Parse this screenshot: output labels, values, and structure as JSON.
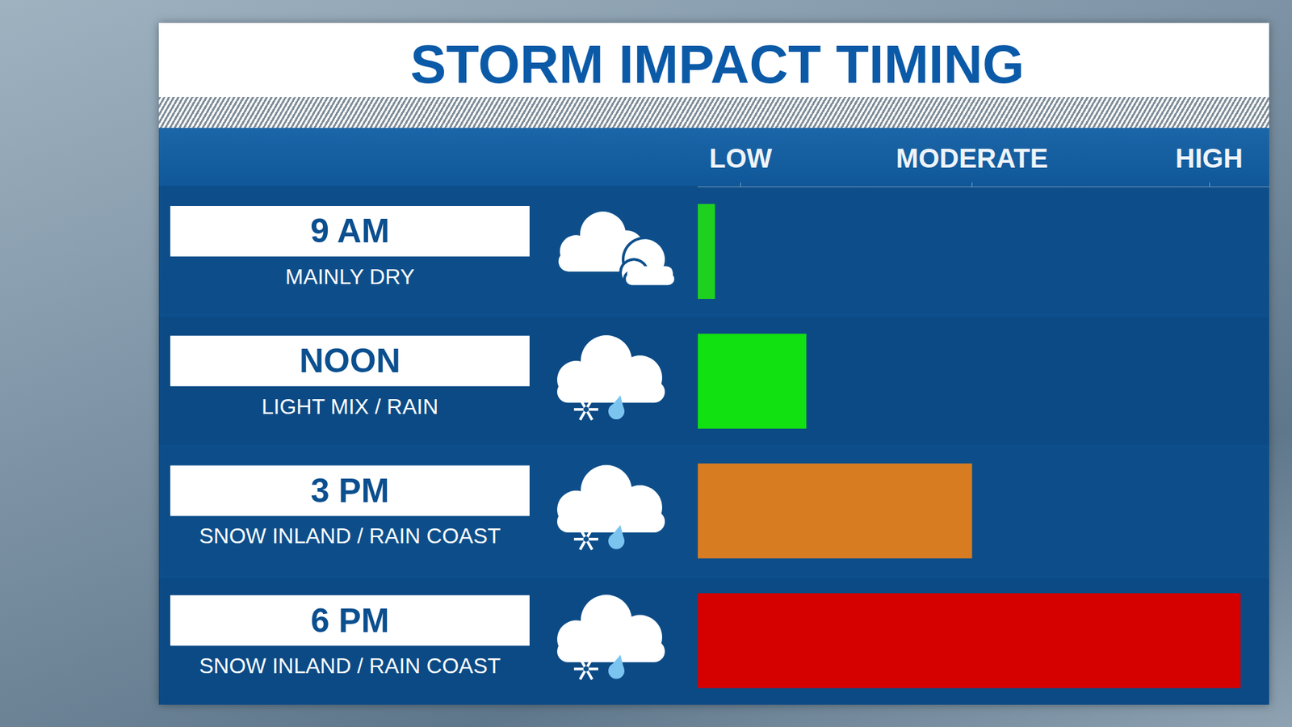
{
  "chart_data": {
    "type": "bar",
    "orientation": "horizontal",
    "title": "STORM IMPACT TIMING",
    "categories": [
      "9 AM",
      "NOON",
      "3 PM",
      "6 PM"
    ],
    "category_notes": [
      "MAINLY DRY",
      "LIGHT MIX / RAIN",
      "SNOW INLAND / RAIN COAST",
      "SNOW INLAND / RAIN COAST"
    ],
    "values": [
      3,
      19,
      48,
      95
    ],
    "colors": [
      "#1fd11f",
      "#11e011",
      "#d87c22",
      "#d50000"
    ],
    "xlim": [
      0,
      100
    ],
    "xticks": [
      {
        "value": 7.5,
        "label": "LOW"
      },
      {
        "value": 48,
        "label": "MODERATE"
      },
      {
        "value": 89.5,
        "label": "HIGH"
      }
    ],
    "grid": false
  }
}
